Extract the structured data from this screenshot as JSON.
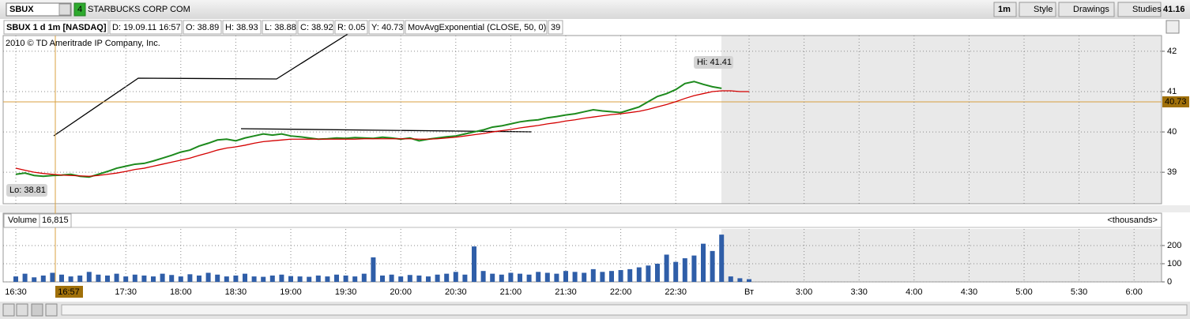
{
  "toolbar": {
    "symbol": "SBUX",
    "badge": "4",
    "company": "STARBUCKS CORP COM",
    "buttons": [
      "1m",
      "Style",
      "Drawings",
      "Studies"
    ],
    "last": "41.16"
  },
  "header": {
    "title": "SBUX 1 d 1m [NASDAQ]",
    "fields": [
      "D: 19.09.11 16:57",
      "O: 38.89",
      "H: 38.93",
      "L: 38.88",
      "C: 38.92",
      "R: 0.05",
      "Y: 40.73"
    ],
    "study": "MovAvgExponential (CLOSE, 50, 0)",
    "study_value": "39"
  },
  "copyright": "2010 © TD Ameritrade IP Company, Inc.",
  "crosshair": {
    "time_label": "16:57",
    "price_label": "40.73"
  },
  "chart_data": [
    {
      "type": "line",
      "categories": [
        "16:30",
        null,
        null,
        null,
        null,
        null,
        null,
        null,
        null,
        null,
        null,
        null,
        "17:30",
        null,
        null,
        null,
        null,
        null,
        "18:00",
        null,
        null,
        null,
        null,
        null,
        "18:30",
        null,
        null,
        null,
        null,
        null,
        "19:00",
        null,
        null,
        null,
        null,
        null,
        "19:30",
        null,
        null,
        null,
        null,
        null,
        "20:00",
        null,
        null,
        null,
        null,
        null,
        "20:30",
        null,
        null,
        null,
        null,
        null,
        "21:00",
        null,
        null,
        null,
        null,
        null,
        "21:30",
        null,
        null,
        null,
        null,
        null,
        "22:00",
        null,
        null,
        null,
        null,
        null,
        "22:30",
        null,
        null,
        null,
        null,
        null,
        null,
        null,
        "Вт",
        null,
        null,
        null,
        null,
        null,
        "3:00",
        null,
        null,
        null,
        null,
        null,
        "3:30",
        null,
        null,
        null,
        null,
        null,
        "4:00",
        null,
        null,
        null,
        null,
        null,
        "4:30",
        null,
        null,
        null,
        null,
        null,
        "5:00",
        null,
        null,
        null,
        null,
        null,
        "5:30",
        null,
        null,
        null,
        null,
        null,
        "6:00",
        null,
        null
      ],
      "series": [
        {
          "color": "#1d8a1d",
          "values": [
            38.95,
            38.98,
            38.92,
            38.9,
            38.92,
            38.93,
            38.95,
            38.9,
            38.88,
            38.95,
            39.02,
            39.1,
            39.15,
            39.2,
            39.22,
            39.28,
            39.35,
            39.42,
            39.5,
            39.55,
            39.65,
            39.72,
            39.8,
            39.82,
            39.78,
            39.85,
            39.9,
            39.95,
            39.92,
            39.95,
            39.9,
            39.88,
            39.85,
            39.82,
            39.83,
            39.85,
            39.84,
            39.86,
            39.85,
            39.84,
            39.87,
            39.85,
            39.82,
            39.85,
            39.78,
            39.82,
            39.85,
            39.88,
            39.9,
            39.95,
            40.0,
            40.05,
            40.12,
            40.15,
            40.2,
            40.25,
            40.28,
            40.3,
            40.35,
            40.38,
            40.42,
            40.45,
            40.5,
            40.55,
            40.52,
            40.5,
            40.48,
            40.55,
            40.62,
            40.75,
            40.88,
            40.95,
            41.05,
            41.2,
            41.25,
            41.18,
            41.12,
            41.08,
            null,
            null,
            null,
            null,
            null,
            null,
            null,
            null,
            null,
            null,
            null,
            null,
            null,
            null,
            null,
            null,
            null,
            null,
            null,
            null,
            null,
            null,
            null,
            null,
            null,
            null,
            null,
            null,
            null,
            null,
            null,
            null,
            null,
            null,
            null,
            null,
            null,
            null,
            null,
            null,
            null,
            null,
            null,
            null,
            null,
            null,
            null
          ]
        },
        {
          "color": "#d40000",
          "values": [
            39.1,
            39.05,
            39.0,
            38.97,
            38.95,
            38.93,
            38.92,
            38.91,
            38.9,
            38.92,
            38.95,
            38.98,
            39.02,
            39.07,
            39.1,
            39.15,
            39.2,
            39.25,
            39.3,
            39.35,
            39.42,
            39.48,
            39.55,
            39.6,
            39.63,
            39.67,
            39.72,
            39.76,
            39.78,
            39.8,
            39.82,
            39.82,
            39.82,
            39.82,
            39.82,
            39.82,
            39.82,
            39.82,
            39.83,
            39.83,
            39.83,
            39.83,
            39.83,
            39.83,
            39.82,
            39.82,
            39.83,
            39.85,
            39.87,
            39.9,
            39.93,
            39.96,
            40.0,
            40.03,
            40.06,
            40.1,
            40.13,
            40.16,
            40.2,
            40.23,
            40.27,
            40.3,
            40.34,
            40.37,
            40.4,
            40.43,
            40.45,
            40.48,
            40.51,
            40.56,
            40.62,
            40.68,
            40.75,
            40.83,
            40.9,
            40.95,
            41.0,
            41.02,
            41.02,
            41.0,
            41.0,
            null,
            null,
            null,
            null,
            null,
            null,
            null,
            null,
            null,
            null,
            null,
            null,
            null,
            null,
            null,
            null,
            null,
            null,
            null,
            null,
            null,
            null,
            null,
            null,
            null,
            null,
            null,
            null,
            null,
            null,
            null,
            null,
            null,
            null,
            null,
            null,
            null,
            null,
            null,
            null,
            null,
            null,
            null,
            null
          ]
        }
      ],
      "annotations": [
        "Hi: 41.41",
        "Lo: 38.81"
      ],
      "ylim": [
        38.22,
        42.39
      ],
      "yticks": [
        39,
        40,
        41,
        42
      ],
      "grid": true
    },
    {
      "type": "bar",
      "title": "Volume",
      "current": "16,815",
      "unit": "<thousands>",
      "color": "#2f5ea8",
      "values": [
        30,
        45,
        25,
        35,
        50,
        40,
        30,
        35,
        55,
        40,
        35,
        45,
        30,
        40,
        35,
        30,
        45,
        38,
        30,
        42,
        35,
        50,
        40,
        30,
        35,
        45,
        30,
        28,
        35,
        40,
        32,
        30,
        28,
        35,
        30,
        40,
        35,
        30,
        45,
        135,
        35,
        40,
        30,
        38,
        35,
        30,
        40,
        45,
        55,
        40,
        195,
        60,
        45,
        40,
        50,
        45,
        40,
        55,
        50,
        45,
        60,
        55,
        50,
        70,
        55,
        60,
        65,
        70,
        80,
        90,
        100,
        150,
        110,
        130,
        145,
        210,
        170,
        260,
        30,
        20,
        15,
        null,
        null,
        null,
        null,
        null,
        null,
        null,
        null,
        null,
        null,
        null,
        null,
        null,
        null,
        null,
        null,
        null,
        null,
        null,
        null,
        null,
        null,
        null,
        null,
        null,
        null,
        null,
        null,
        null,
        null,
        null,
        null,
        null,
        null,
        null,
        null,
        null,
        null,
        null,
        null,
        null,
        null,
        null,
        null
      ],
      "ylim": [
        0,
        291
      ],
      "yticks": [
        0,
        100,
        200
      ],
      "grid": true
    }
  ]
}
